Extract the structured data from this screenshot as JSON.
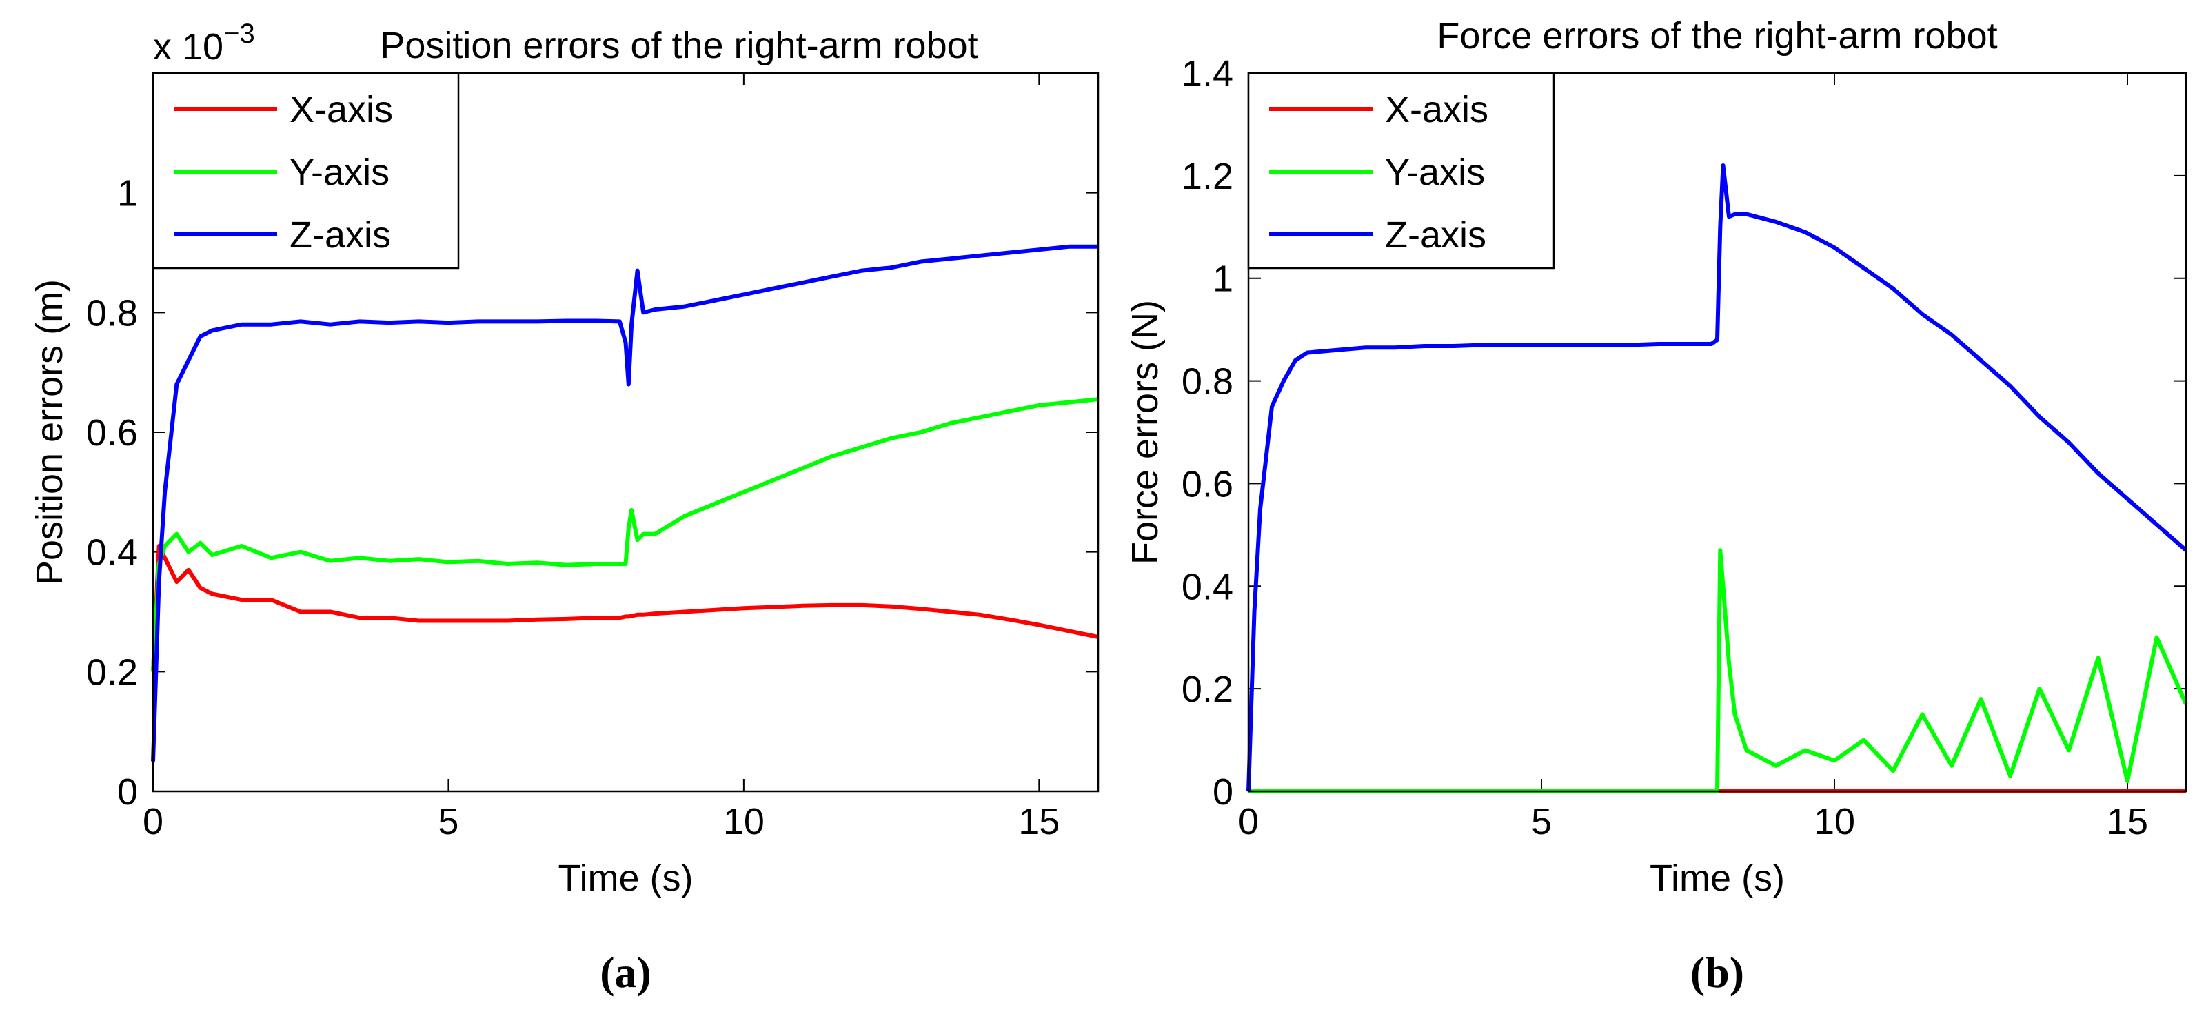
{
  "chart_data": [
    {
      "type": "line",
      "title": "Position errors of the right-arm robot",
      "multiplier": {
        "base": "x 10",
        "exponent": "−3"
      },
      "xlabel": "Time (s)",
      "ylabel": "Position errors (m)",
      "caption": "(a)",
      "x": [
        0,
        0.1,
        0.2,
        0.4,
        0.6,
        0.8,
        1,
        1.5,
        2,
        2.5,
        3,
        3.5,
        4,
        4.5,
        5,
        5.5,
        6,
        6.5,
        7,
        7.5,
        7.9,
        8.0,
        8.05,
        8.1,
        8.2,
        8.3,
        8.5,
        9,
        9.5,
        10,
        10.5,
        11,
        11.5,
        12,
        12.5,
        13,
        13.5,
        14,
        14.5,
        15,
        15.5,
        16
      ],
      "series": [
        {
          "name": "X-axis",
          "color": "#ff0000",
          "values": [
            0.2,
            0.41,
            0.39,
            0.35,
            0.37,
            0.34,
            0.33,
            0.32,
            0.32,
            0.3,
            0.3,
            0.29,
            0.29,
            0.285,
            0.285,
            0.285,
            0.285,
            0.287,
            0.288,
            0.29,
            0.29,
            0.292,
            0.292,
            0.293,
            0.295,
            0.295,
            0.297,
            0.3,
            0.303,
            0.306,
            0.308,
            0.31,
            0.311,
            0.311,
            0.309,
            0.305,
            0.3,
            0.295,
            0.287,
            0.278,
            0.268,
            0.258
          ]
        },
        {
          "name": "Y-axis",
          "color": "#00ff00",
          "values": [
            0.2,
            0.38,
            0.41,
            0.43,
            0.4,
            0.415,
            0.395,
            0.41,
            0.39,
            0.4,
            0.385,
            0.39,
            0.385,
            0.388,
            0.383,
            0.385,
            0.38,
            0.382,
            0.378,
            0.38,
            0.38,
            0.38,
            0.44,
            0.47,
            0.42,
            0.43,
            0.43,
            0.46,
            0.48,
            0.5,
            0.52,
            0.54,
            0.56,
            0.575,
            0.59,
            0.6,
            0.615,
            0.625,
            0.635,
            0.645,
            0.65,
            0.655
          ]
        },
        {
          "name": "Z-axis",
          "color": "#0000ff",
          "values": [
            0.05,
            0.35,
            0.5,
            0.68,
            0.72,
            0.76,
            0.77,
            0.78,
            0.78,
            0.785,
            0.78,
            0.785,
            0.783,
            0.785,
            0.783,
            0.785,
            0.785,
            0.785,
            0.786,
            0.786,
            0.785,
            0.75,
            0.68,
            0.78,
            0.87,
            0.8,
            0.805,
            0.81,
            0.82,
            0.83,
            0.84,
            0.85,
            0.86,
            0.87,
            0.875,
            0.885,
            0.89,
            0.895,
            0.9,
            0.905,
            0.91,
            0.91
          ]
        }
      ],
      "xlim": [
        0,
        16
      ],
      "xticks": [
        0,
        5,
        10,
        15
      ],
      "ylim": [
        0,
        1.2
      ],
      "yticks": [
        0,
        0.2,
        0.4,
        0.6,
        0.8,
        1
      ],
      "legend": "top-left"
    },
    {
      "type": "line",
      "title": "Force errors of the right-arm robot",
      "xlabel": "Time (s)",
      "ylabel": "Force errors (N)",
      "caption": "(b)",
      "x": [
        0,
        0.1,
        0.2,
        0.4,
        0.6,
        0.8,
        1,
        1.5,
        2,
        2.5,
        3,
        3.5,
        4,
        4.5,
        5,
        5.5,
        6,
        6.5,
        7,
        7.5,
        7.9,
        8.0,
        8.05,
        8.1,
        8.2,
        8.3,
        8.5,
        9,
        9.5,
        10,
        10.5,
        11,
        11.5,
        12,
        12.5,
        13,
        13.5,
        14,
        14.5,
        15,
        15.5,
        16
      ],
      "series": [
        {
          "name": "X-axis",
          "color": "#ff0000",
          "values": [
            0,
            0,
            0,
            0,
            0,
            0,
            0,
            0,
            0,
            0,
            0,
            0,
            0,
            0,
            0,
            0,
            0,
            0,
            0,
            0,
            0,
            0,
            0,
            0,
            0,
            0,
            0,
            0,
            0,
            0,
            0,
            0,
            0,
            0,
            0,
            0,
            0,
            0,
            0,
            0,
            0,
            0
          ]
        },
        {
          "name": "Y-axis",
          "color": "#00ff00",
          "values": [
            0,
            0,
            0,
            0,
            0,
            0,
            0,
            0,
            0,
            0,
            0,
            0,
            0,
            0,
            0,
            0,
            0,
            0,
            0,
            0,
            0,
            0,
            0.47,
            0.4,
            0.25,
            0.15,
            0.08,
            0.05,
            0.08,
            0.06,
            0.1,
            0.04,
            0.15,
            0.05,
            0.18,
            0.03,
            0.2,
            0.08,
            0.26,
            0.02,
            0.3,
            0.17
          ]
        },
        {
          "name": "Z-axis",
          "color": "#0000ff",
          "values": [
            0,
            0.35,
            0.55,
            0.75,
            0.8,
            0.84,
            0.855,
            0.86,
            0.865,
            0.865,
            0.868,
            0.868,
            0.87,
            0.87,
            0.87,
            0.87,
            0.87,
            0.87,
            0.872,
            0.872,
            0.872,
            0.88,
            1.1,
            1.22,
            1.12,
            1.125,
            1.125,
            1.11,
            1.09,
            1.06,
            1.02,
            0.98,
            0.93,
            0.89,
            0.84,
            0.79,
            0.73,
            0.68,
            0.62,
            0.57,
            0.52,
            0.47
          ]
        }
      ],
      "xlim": [
        0,
        16
      ],
      "xticks": [
        0,
        5,
        10,
        15
      ],
      "ylim": [
        0,
        1.4
      ],
      "yticks": [
        0,
        0.2,
        0.4,
        0.6,
        0.8,
        1,
        1.2,
        1.4
      ],
      "legend": "top-left"
    }
  ]
}
